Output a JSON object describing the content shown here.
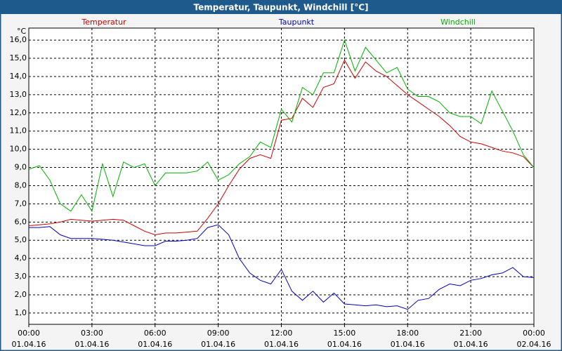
{
  "chart_data": {
    "type": "line",
    "title": "Temperatur, Taupunkt, Windchill [°C]",
    "y_label": "°C",
    "x": [
      0,
      0.5,
      1,
      1.5,
      2,
      2.5,
      3,
      3.5,
      4,
      4.5,
      5,
      5.5,
      6,
      6.5,
      7,
      7.5,
      8,
      8.5,
      9,
      9.5,
      10,
      10.5,
      11,
      11.5,
      12,
      12.5,
      13,
      13.5,
      14,
      14.5,
      15,
      15.5,
      16,
      16.5,
      17,
      17.5,
      18,
      18.5,
      19,
      19.5,
      20,
      20.5,
      21,
      21.5,
      22,
      22.5,
      23,
      23.5,
      24
    ],
    "series": [
      {
        "name": "Temperatur",
        "color": "#d00000",
        "values": [
          5.8,
          5.85,
          5.9,
          6.0,
          6.15,
          6.1,
          6.05,
          6.1,
          6.15,
          6.1,
          5.8,
          5.5,
          5.3,
          5.4,
          5.4,
          5.45,
          5.5,
          6.2,
          7.0,
          8.0,
          8.9,
          9.5,
          9.7,
          9.5,
          11.6,
          11.7,
          12.8,
          12.3,
          13.4,
          13.6,
          14.9,
          13.9,
          14.8,
          14.3,
          14.0,
          13.5,
          13.0,
          12.6,
          12.2,
          11.8,
          11.3,
          10.7,
          10.4,
          10.3,
          10.1,
          9.9,
          9.8,
          9.6,
          9.0
        ]
      },
      {
        "name": "Taupunkt",
        "color": "#0000c0",
        "values": [
          5.7,
          5.7,
          5.75,
          5.3,
          5.1,
          5.1,
          5.1,
          5.05,
          5.0,
          4.9,
          4.8,
          4.7,
          4.7,
          4.95,
          4.95,
          5.0,
          5.1,
          5.7,
          5.85,
          5.3,
          4.0,
          3.2,
          2.8,
          2.6,
          3.4,
          2.2,
          1.7,
          2.2,
          1.6,
          2.1,
          1.5,
          1.45,
          1.4,
          1.45,
          1.35,
          1.4,
          1.2,
          1.7,
          1.8,
          2.3,
          2.6,
          2.5,
          2.8,
          2.9,
          3.1,
          3.2,
          3.5,
          3.0,
          2.95
        ]
      },
      {
        "name": "Windchill",
        "color": "#00b000",
        "values": [
          8.9,
          9.1,
          8.3,
          7.0,
          6.6,
          7.5,
          6.6,
          9.2,
          7.4,
          9.3,
          9.0,
          9.2,
          8.0,
          8.7,
          8.7,
          8.7,
          8.8,
          9.3,
          8.3,
          8.6,
          9.2,
          9.6,
          10.4,
          10.1,
          12.2,
          11.5,
          13.4,
          13.0,
          14.2,
          14.2,
          16.0,
          14.3,
          15.6,
          14.9,
          14.2,
          14.5,
          13.3,
          12.9,
          12.9,
          12.6,
          12.0,
          11.8,
          11.8,
          11.4,
          13.2,
          12.1,
          11.0,
          9.7,
          9.0
        ]
      }
    ],
    "xlim": [
      0,
      24
    ],
    "xticks": [
      {
        "value": 0,
        "label": "00:00"
      },
      {
        "value": 3,
        "label": "03:00"
      },
      {
        "value": 6,
        "label": "06:00"
      },
      {
        "value": 9,
        "label": "09:00"
      },
      {
        "value": 12,
        "label": "12:00"
      },
      {
        "value": 15,
        "label": "15:00"
      },
      {
        "value": 18,
        "label": "18:00"
      },
      {
        "value": 21,
        "label": "21:00"
      },
      {
        "value": 24,
        "label": "00:00"
      }
    ],
    "xtick_dates": [
      "01.04.16",
      "01.04.16",
      "01.04.16",
      "01.04.16",
      "01.04.16",
      "01.04.16",
      "01.04.16",
      "01.04.16",
      "02.04.16"
    ],
    "ylim": [
      0.38,
      16.66
    ],
    "yticks": [
      {
        "value": 1,
        "label": "1,0"
      },
      {
        "value": 2,
        "label": "2,0"
      },
      {
        "value": 3,
        "label": "3,0"
      },
      {
        "value": 4,
        "label": "4,0"
      },
      {
        "value": 5,
        "label": "5,0"
      },
      {
        "value": 6,
        "label": "6,0"
      },
      {
        "value": 7,
        "label": "7,0"
      },
      {
        "value": 8,
        "label": "8,0"
      },
      {
        "value": 9,
        "label": "9,0"
      },
      {
        "value": 10,
        "label": "10,0"
      },
      {
        "value": 11,
        "label": "11,0"
      },
      {
        "value": 12,
        "label": "12,0"
      },
      {
        "value": 13,
        "label": "13,0"
      },
      {
        "value": 14,
        "label": "14,0"
      },
      {
        "value": 15,
        "label": "15,0"
      },
      {
        "value": 16,
        "label": "16,0"
      }
    ],
    "grid": true
  }
}
